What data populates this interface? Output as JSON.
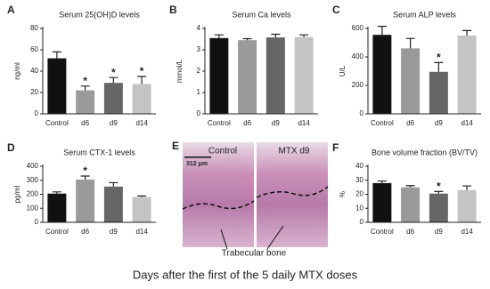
{
  "chart_data": [
    {
      "type": "bar",
      "panel": "A",
      "title": "Serum 25(OH)D levels",
      "y_label": "ng/ml",
      "categories": [
        "Control",
        "d6",
        "d9",
        "d14"
      ],
      "values": [
        52,
        22,
        29,
        28
      ],
      "errors": [
        6,
        4,
        5,
        7
      ],
      "significance": [
        null,
        "*",
        "*",
        "*"
      ],
      "colors": [
        "#111111",
        "#9a9a9a",
        "#666666",
        "#c4c4c4"
      ],
      "ylim": [
        0,
        80
      ],
      "yticks": [
        0,
        20,
        40,
        60,
        80
      ]
    },
    {
      "type": "bar",
      "panel": "B",
      "title": "Serum Ca levels",
      "y_label": "mmol/L",
      "categories": [
        "Control",
        "d6",
        "d9",
        "d14"
      ],
      "values": [
        3.55,
        3.45,
        3.58,
        3.6
      ],
      "errors": [
        0.15,
        0.07,
        0.15,
        0.1
      ],
      "significance": [
        null,
        null,
        null,
        null
      ],
      "colors": [
        "#111111",
        "#9a9a9a",
        "#666666",
        "#c4c4c4"
      ],
      "ylim": [
        0,
        4
      ],
      "yticks": [
        0,
        1,
        2,
        3,
        4
      ]
    },
    {
      "type": "bar",
      "panel": "C",
      "title": "Serum ALP levels",
      "y_label": "U/L",
      "categories": [
        "Control",
        "d6",
        "d9",
        "d14"
      ],
      "values": [
        555,
        460,
        295,
        550
      ],
      "errors": [
        60,
        70,
        65,
        35
      ],
      "significance": [
        null,
        null,
        "*",
        null
      ],
      "colors": [
        "#111111",
        "#9a9a9a",
        "#666666",
        "#c4c4c4"
      ],
      "ylim": [
        0,
        600
      ],
      "yticks": [
        0,
        200,
        400,
        600
      ]
    },
    {
      "type": "bar",
      "panel": "D",
      "title": "Serum CTX-1 levels",
      "y_label": "pg/ml",
      "categories": [
        "Control",
        "d6",
        "d9",
        "d14"
      ],
      "values": [
        205,
        305,
        255,
        180
      ],
      "errors": [
        12,
        25,
        28,
        8
      ],
      "significance": [
        null,
        "*",
        null,
        null
      ],
      "colors": [
        "#111111",
        "#9a9a9a",
        "#666666",
        "#c4c4c4"
      ],
      "ylim": [
        0,
        400
      ],
      "yticks": [
        0,
        100,
        200,
        300,
        400
      ]
    },
    {
      "type": "bar",
      "panel": "F",
      "title": "Bone volume fraction (BV/TV)",
      "y_label": "%",
      "categories": [
        "Control",
        "d6",
        "d9",
        "d14"
      ],
      "values": [
        28,
        25,
        20.5,
        23
      ],
      "errors": [
        1.5,
        1.2,
        1.5,
        3
      ],
      "significance": [
        null,
        null,
        "*",
        null
      ],
      "colors": [
        "#111111",
        "#9a9a9a",
        "#666666",
        "#c4c4c4"
      ],
      "ylim": [
        0,
        40
      ],
      "yticks": [
        0,
        10,
        20,
        30,
        40
      ]
    }
  ],
  "image_panel": {
    "panel": "E",
    "left_label": "Control",
    "right_label": "MTX d9",
    "scale_bar": "312 μm",
    "annotation": "Trabecular bone"
  },
  "caption": "Days after the first of the 5 daily MTX doses"
}
